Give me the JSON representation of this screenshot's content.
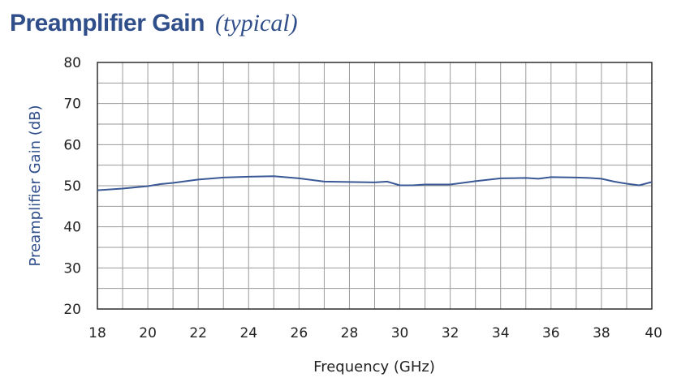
{
  "chart_data": {
    "type": "line",
    "title": "Preamplifier Gain",
    "subtitle": "(typical)",
    "xlabel": "Frequency (GHz)",
    "ylabel": "Preamplifier Gain (dB)",
    "xlim": [
      18,
      40
    ],
    "ylim": [
      20,
      80
    ],
    "x_ticks": [
      "18",
      "20",
      "22",
      "24",
      "26",
      "28",
      "30",
      "32",
      "34",
      "36",
      "38",
      "40"
    ],
    "y_ticks": [
      "80",
      "70",
      "60",
      "50",
      "40",
      "30",
      "20"
    ],
    "grid": true,
    "legend": "none",
    "line_color": "#3a5896",
    "series": [
      {
        "x": [
          18,
          19,
          20,
          20.5,
          21,
          22,
          23,
          24,
          25,
          26,
          27,
          28,
          29,
          29.5,
          30,
          30.5,
          31,
          32,
          33,
          34,
          35,
          35.5,
          36,
          37,
          37.5,
          38,
          38.5,
          39,
          39.5,
          40
        ],
        "values": [
          48.9,
          49.3,
          49.9,
          50.4,
          50.7,
          51.5,
          52.0,
          52.2,
          52.3,
          51.8,
          51.0,
          50.9,
          50.8,
          51.0,
          50.1,
          50.1,
          50.3,
          50.3,
          51.1,
          51.8,
          51.9,
          51.7,
          52.1,
          52.0,
          51.9,
          51.7,
          51.0,
          50.5,
          50.1,
          50.9
        ]
      }
    ]
  }
}
